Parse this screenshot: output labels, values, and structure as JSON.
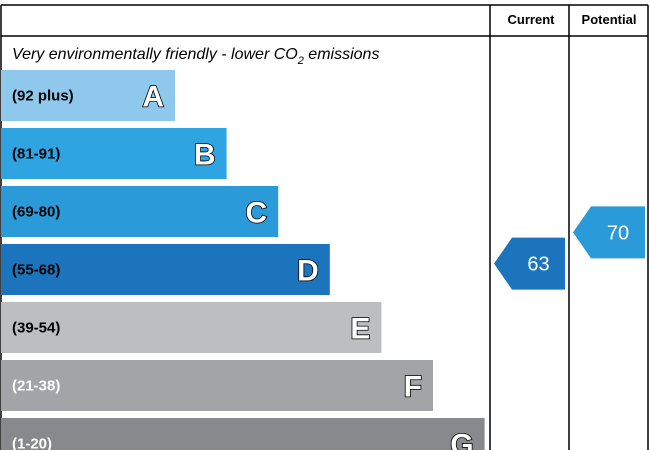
{
  "chart_data": {
    "type": "bar",
    "header": {
      "current": "Current",
      "potential": "Potential"
    },
    "caption": {
      "main": "Very environmentally friendly - lower CO",
      "sub": "2",
      "tail": " emissions"
    },
    "bands": [
      {
        "letter": "A",
        "range": "(92 plus)",
        "min": 92,
        "max": 100,
        "color": "#8ec8ec",
        "text_color": "#000000"
      },
      {
        "letter": "B",
        "range": "(81-91)",
        "min": 81,
        "max": 91,
        "color": "#2fa4e2",
        "text_color": "#000000"
      },
      {
        "letter": "C",
        "range": "(69-80)",
        "min": 69,
        "max": 80,
        "color": "#2b9ad9",
        "text_color": "#000000"
      },
      {
        "letter": "D",
        "range": "(55-68)",
        "min": 55,
        "max": 68,
        "color": "#1c75bc",
        "text_color": "#000000"
      },
      {
        "letter": "E",
        "range": "(39-54)",
        "min": 39,
        "max": 54,
        "color": "#bcbec0",
        "text_color": "#000000"
      },
      {
        "letter": "F",
        "range": "(21-38)",
        "min": 21,
        "max": 38,
        "color": "#a2a4a7",
        "text_color": "#ffffff"
      },
      {
        "letter": "G",
        "range": "(1-20)",
        "min": 1,
        "max": 20,
        "color": "#87898c",
        "text_color": "#ffffff"
      }
    ],
    "current": {
      "value": 63,
      "color": "#1c75bc"
    },
    "potential": {
      "value": 70,
      "color": "#2b9ad9"
    }
  }
}
